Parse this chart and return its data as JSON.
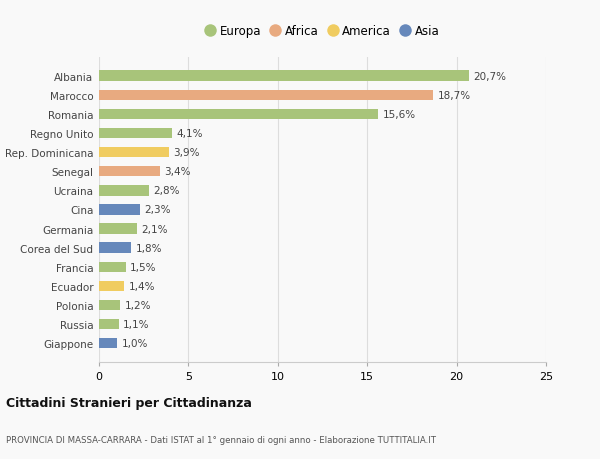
{
  "countries": [
    "Albania",
    "Marocco",
    "Romania",
    "Regno Unito",
    "Rep. Dominicana",
    "Senegal",
    "Ucraina",
    "Cina",
    "Germania",
    "Corea del Sud",
    "Francia",
    "Ecuador",
    "Polonia",
    "Russia",
    "Giappone"
  ],
  "values": [
    20.7,
    18.7,
    15.6,
    4.1,
    3.9,
    3.4,
    2.8,
    2.3,
    2.1,
    1.8,
    1.5,
    1.4,
    1.2,
    1.1,
    1.0
  ],
  "labels": [
    "20,7%",
    "18,7%",
    "15,6%",
    "4,1%",
    "3,9%",
    "3,4%",
    "2,8%",
    "2,3%",
    "2,1%",
    "1,8%",
    "1,5%",
    "1,4%",
    "1,2%",
    "1,1%",
    "1,0%"
  ],
  "continents": [
    "Europa",
    "Africa",
    "Europa",
    "Europa",
    "America",
    "Africa",
    "Europa",
    "Asia",
    "Europa",
    "Asia",
    "Europa",
    "America",
    "Europa",
    "Europa",
    "Asia"
  ],
  "colors": {
    "Europa": "#a8c47a",
    "Africa": "#e8aa80",
    "America": "#f0cc60",
    "Asia": "#6688bb"
  },
  "legend_order": [
    "Europa",
    "Africa",
    "America",
    "Asia"
  ],
  "xlim": [
    0,
    25
  ],
  "xticks": [
    0,
    5,
    10,
    15,
    20,
    25
  ],
  "title": "Cittadini Stranieri per Cittadinanza",
  "subtitle": "PROVINCIA DI MASSA-CARRARA - Dati ISTAT al 1° gennaio di ogni anno - Elaborazione TUTTITALIA.IT",
  "background_color": "#f9f9f9",
  "bar_height": 0.55
}
